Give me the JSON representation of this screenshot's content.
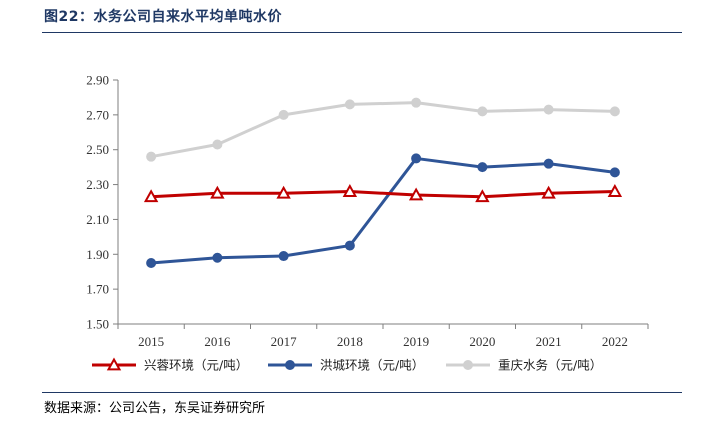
{
  "figure": {
    "title": "图22：水务公司自来水平均单吨水价",
    "source": "数据来源：公司公告，东吴证券研究所"
  },
  "chart_data": {
    "type": "line",
    "categories": [
      "2015",
      "2016",
      "2017",
      "2018",
      "2019",
      "2020",
      "2021",
      "2022"
    ],
    "ylim": [
      1.5,
      2.9
    ],
    "yticks": [
      "1.50",
      "1.70",
      "1.90",
      "2.10",
      "2.30",
      "2.50",
      "2.70",
      "2.90"
    ],
    "grid": false,
    "legend_position": "bottom",
    "series": [
      {
        "name": "兴蓉环境（元/吨）",
        "color": "#c00000",
        "marker": "triangle",
        "values": [
          2.23,
          2.25,
          2.25,
          2.26,
          2.24,
          2.23,
          2.25,
          2.26
        ]
      },
      {
        "name": "洪城环境（元/吨）",
        "color": "#2f5597",
        "marker": "circle",
        "values": [
          1.85,
          1.88,
          1.89,
          1.95,
          2.45,
          2.4,
          2.42,
          2.37
        ]
      },
      {
        "name": "重庆水务（元/吨）",
        "color": "#d0d0d0",
        "marker": "circle",
        "values": [
          2.46,
          2.53,
          2.7,
          2.76,
          2.77,
          2.72,
          2.73,
          2.72
        ]
      }
    ]
  }
}
